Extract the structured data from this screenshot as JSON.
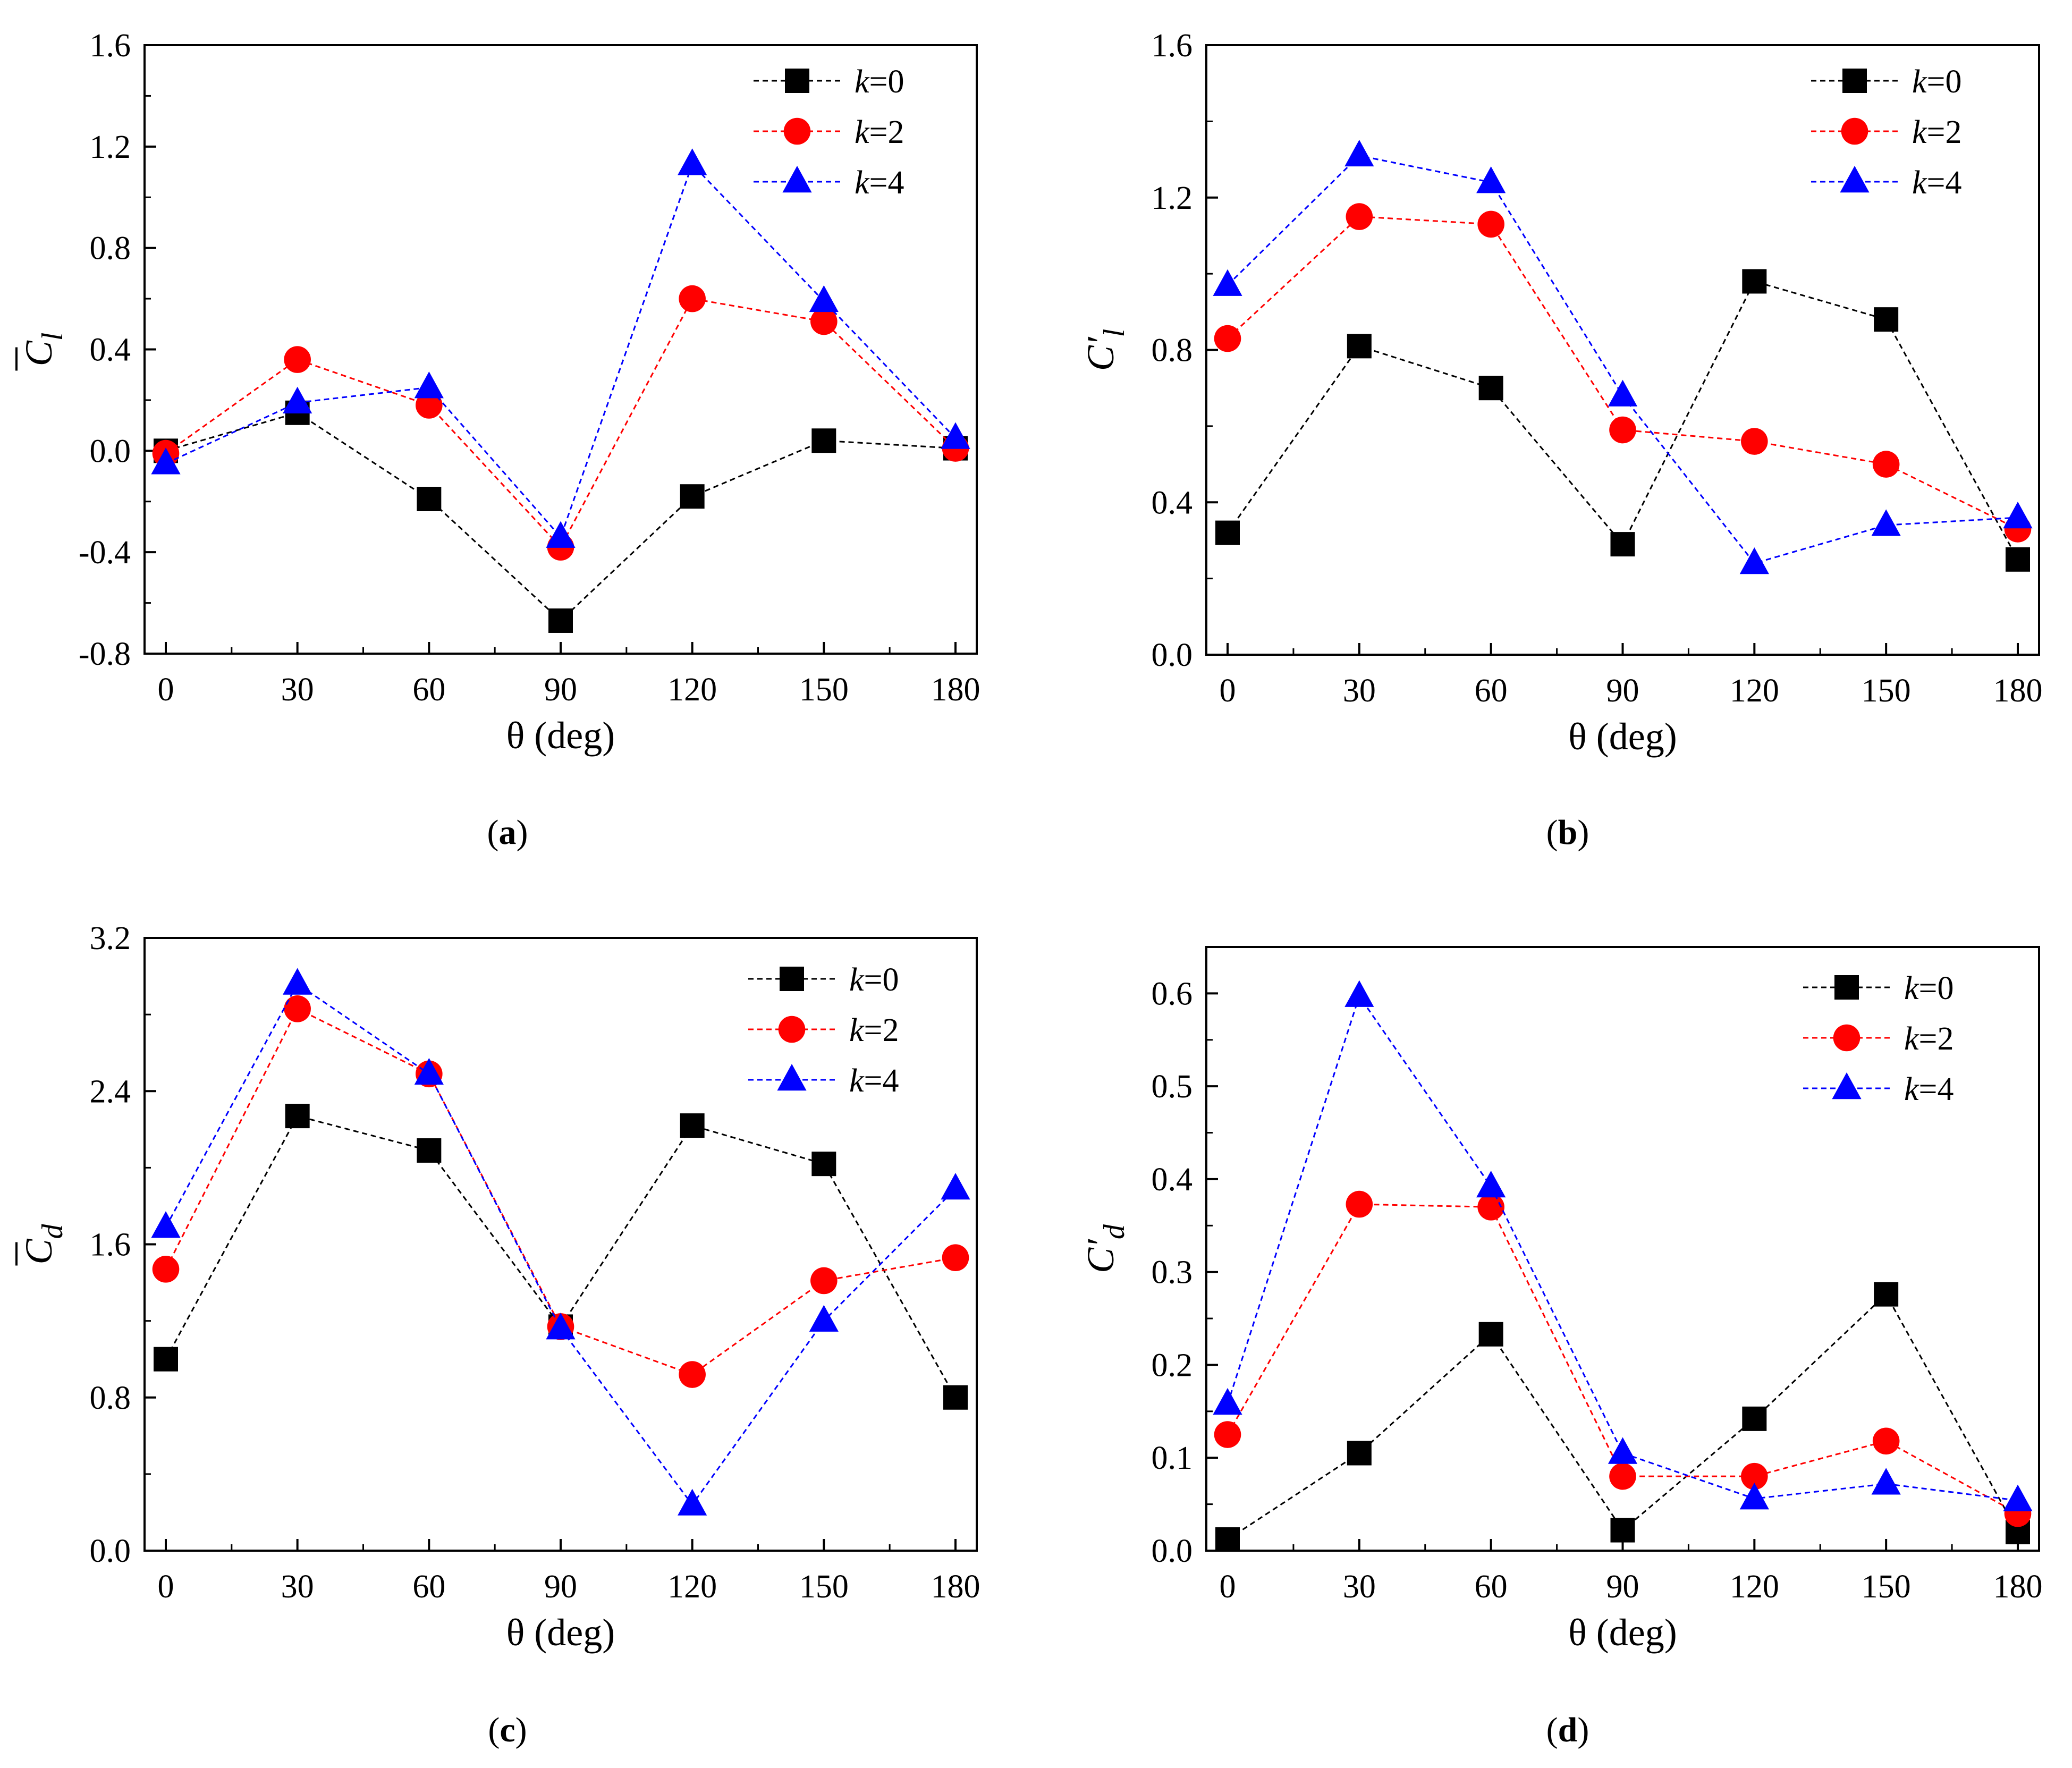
{
  "colors": {
    "k0": "#000000",
    "k2": "#ff0000",
    "k4": "#0000ff",
    "axis": "#000000"
  },
  "chart_data": [
    {
      "type": "line",
      "caption": "a",
      "title": "",
      "xlabel": "θ (deg)",
      "ylabel": "C̄l",
      "ylabel_main": "C",
      "ylabel_sub": "l",
      "ylabel_mark": "bar",
      "xlim": [
        0,
        180
      ],
      "ylim": [
        -0.8,
        1.6
      ],
      "xticks": [
        "0",
        "30",
        "60",
        "90",
        "120",
        "150",
        "180"
      ],
      "yticks": [
        "-0.8",
        "-0.4",
        "0.0",
        "0.4",
        "0.8",
        "1.2",
        "1.6"
      ],
      "x": [
        0,
        30,
        60,
        90,
        120,
        150,
        180
      ],
      "legend_position": "top-right",
      "series": [
        {
          "name": "k=0",
          "k": "k",
          "eq": "=0",
          "marker": "square",
          "values": [
            0.0,
            0.15,
            -0.19,
            -0.67,
            -0.18,
            0.04,
            0.01
          ]
        },
        {
          "name": "k=2",
          "k": "k",
          "eq": "=2",
          "marker": "circle",
          "values": [
            -0.01,
            0.36,
            0.18,
            -0.38,
            0.6,
            0.51,
            0.01
          ]
        },
        {
          "name": "k=4",
          "k": "k",
          "eq": "=4",
          "marker": "triangle",
          "values": [
            -0.05,
            0.19,
            0.25,
            -0.34,
            1.13,
            0.59,
            0.05
          ]
        }
      ]
    },
    {
      "type": "line",
      "caption": "b",
      "title": "",
      "xlabel": "θ (deg)",
      "ylabel": "C′l",
      "ylabel_main": "C′",
      "ylabel_sub": "l",
      "ylabel_mark": "prime",
      "xlim": [
        0,
        180
      ],
      "ylim": [
        0.0,
        1.6
      ],
      "xticks": [
        "0",
        "30",
        "60",
        "90",
        "120",
        "150",
        "180"
      ],
      "yticks": [
        "0.0",
        "0.4",
        "0.8",
        "1.2",
        "1.6"
      ],
      "x": [
        0,
        30,
        60,
        90,
        120,
        150,
        180
      ],
      "legend_position": "top-right",
      "series": [
        {
          "name": "k=0",
          "k": "k",
          "eq": "=0",
          "marker": "square",
          "values": [
            0.32,
            0.81,
            0.7,
            0.29,
            0.98,
            0.88,
            0.25
          ]
        },
        {
          "name": "k=2",
          "k": "k",
          "eq": "=2",
          "marker": "circle",
          "values": [
            0.83,
            1.15,
            1.13,
            0.59,
            0.56,
            0.5,
            0.33
          ]
        },
        {
          "name": "k=4",
          "k": "k",
          "eq": "=4",
          "marker": "triangle",
          "values": [
            0.97,
            1.31,
            1.24,
            0.68,
            0.24,
            0.34,
            0.36
          ]
        }
      ]
    },
    {
      "type": "line",
      "caption": "c",
      "title": "",
      "xlabel": "θ (deg)",
      "ylabel": "C̄d",
      "ylabel_main": "C",
      "ylabel_sub": "d",
      "ylabel_mark": "bar",
      "xlim": [
        0,
        180
      ],
      "ylim": [
        0.0,
        3.2
      ],
      "xticks": [
        "0",
        "30",
        "60",
        "90",
        "120",
        "150",
        "180"
      ],
      "yticks": [
        "0.0",
        "0.8",
        "1.6",
        "2.4",
        "3.2"
      ],
      "x": [
        0,
        30,
        60,
        90,
        120,
        150,
        180
      ],
      "legend_position": "top-right",
      "series": [
        {
          "name": "k=0",
          "k": "k",
          "eq": "=0",
          "marker": "square",
          "values": [
            1.0,
            2.27,
            2.09,
            1.17,
            2.22,
            2.02,
            0.8
          ]
        },
        {
          "name": "k=2",
          "k": "k",
          "eq": "=2",
          "marker": "circle",
          "values": [
            1.47,
            2.83,
            2.49,
            1.17,
            0.92,
            1.41,
            1.53
          ]
        },
        {
          "name": "k=4",
          "k": "k",
          "eq": "=4",
          "marker": "triangle",
          "values": [
            1.69,
            2.96,
            2.49,
            1.16,
            0.24,
            1.2,
            1.89
          ]
        }
      ]
    },
    {
      "type": "line",
      "caption": "d",
      "title": "",
      "xlabel": "θ (deg)",
      "ylabel": "C′d",
      "ylabel_main": "C′",
      "ylabel_sub": "d",
      "ylabel_mark": "prime",
      "xlim": [
        0,
        180
      ],
      "ylim": [
        0.0,
        0.65
      ],
      "xticks": [
        "0",
        "30",
        "60",
        "90",
        "120",
        "150",
        "180"
      ],
      "yticks": [
        "0.0",
        "0.1",
        "0.2",
        "0.3",
        "0.4",
        "0.5",
        "0.6"
      ],
      "x": [
        0,
        30,
        60,
        90,
        120,
        150,
        180
      ],
      "legend_position": "top-right",
      "series": [
        {
          "name": "k=0",
          "k": "k",
          "eq": "=0",
          "marker": "square",
          "values": [
            0.012,
            0.105,
            0.233,
            0.022,
            0.142,
            0.276,
            0.02
          ]
        },
        {
          "name": "k=2",
          "k": "k",
          "eq": "=2",
          "marker": "circle",
          "values": [
            0.125,
            0.373,
            0.37,
            0.08,
            0.08,
            0.118,
            0.04
          ]
        },
        {
          "name": "k=4",
          "k": "k",
          "eq": "=4",
          "marker": "triangle",
          "values": [
            0.158,
            0.597,
            0.392,
            0.105,
            0.056,
            0.072,
            0.054
          ]
        }
      ]
    }
  ]
}
